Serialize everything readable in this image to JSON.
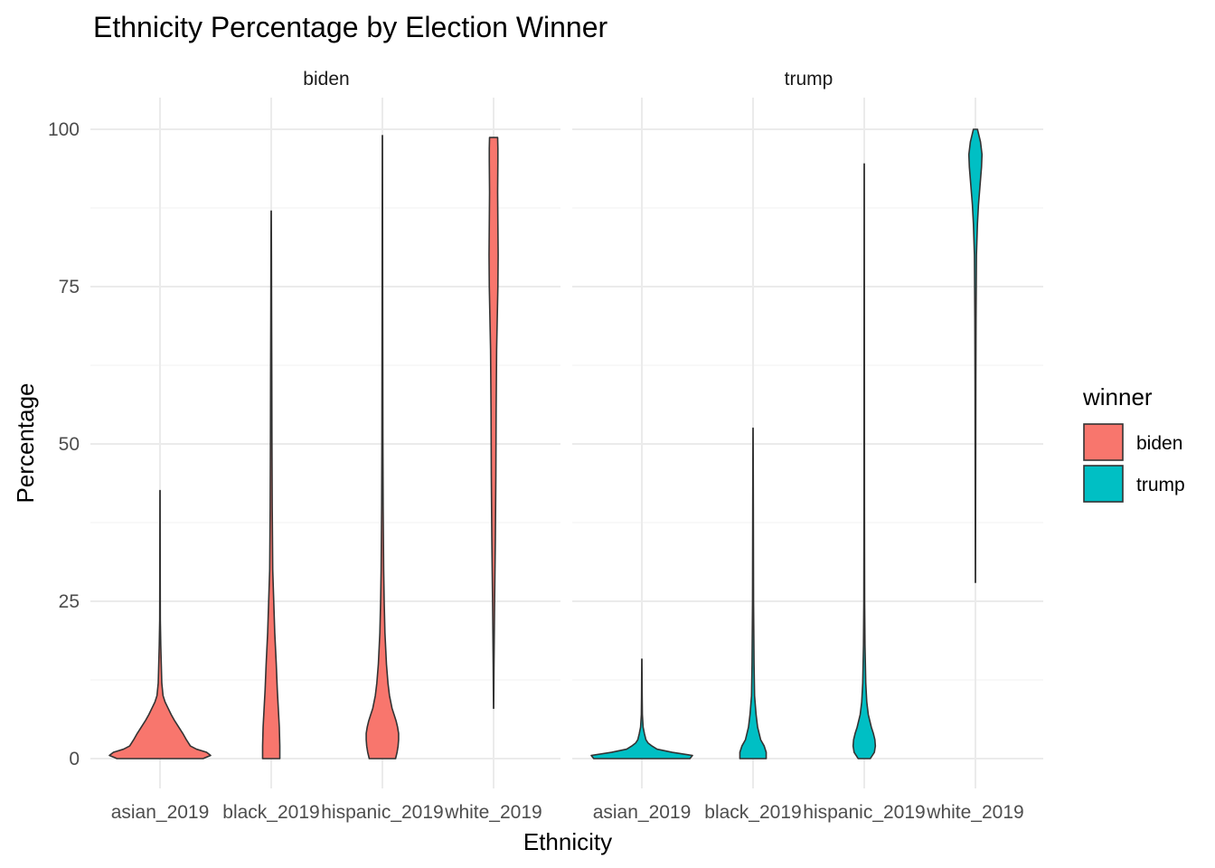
{
  "chart_data": {
    "type": "violin",
    "title": "Ethnicity Percentage by Election Winner",
    "xlabel": "Ethnicity",
    "ylabel": "Percentage",
    "ylim": [
      -4,
      105
    ],
    "y_ticks": [
      0,
      25,
      50,
      75,
      100
    ],
    "categories": [
      "asian_2019",
      "black_2019",
      "hispanic_2019",
      "white_2019"
    ],
    "legend": {
      "title": "winner",
      "position": "right",
      "entries": [
        {
          "label": "biden",
          "color": "#F8766D"
        },
        {
          "label": "trump",
          "color": "#00BFC4"
        }
      ]
    },
    "grid": true,
    "facets": [
      {
        "label": "biden",
        "color": "#F8766D",
        "violins": [
          {
            "category": "asian_2019",
            "min": 0,
            "max": 42.6,
            "profile": [
              [
                0,
                0.85
              ],
              [
                0.5,
                1.0
              ],
              [
                1,
                0.92
              ],
              [
                1.5,
                0.72
              ],
              [
                2,
                0.6
              ],
              [
                3,
                0.52
              ],
              [
                4,
                0.45
              ],
              [
                5,
                0.37
              ],
              [
                6,
                0.29
              ],
              [
                7,
                0.22
              ],
              [
                8,
                0.16
              ],
              [
                9,
                0.1
              ],
              [
                10,
                0.06
              ],
              [
                12,
                0.035
              ],
              [
                15,
                0.025
              ],
              [
                18,
                0.015
              ],
              [
                22,
                0.006
              ],
              [
                30,
                0.004
              ],
              [
                42.6,
                0.002
              ]
            ]
          },
          {
            "category": "black_2019",
            "min": 0,
            "max": 87,
            "profile": [
              [
                0,
                0.17
              ],
              [
                2,
                0.17
              ],
              [
                5,
                0.16
              ],
              [
                8,
                0.14
              ],
              [
                11,
                0.12
              ],
              [
                15,
                0.1
              ],
              [
                20,
                0.07
              ],
              [
                25,
                0.05
              ],
              [
                30,
                0.03
              ],
              [
                40,
                0.02
              ],
              [
                50,
                0.015
              ],
              [
                60,
                0.012
              ],
              [
                70,
                0.008
              ],
              [
                80,
                0.005
              ],
              [
                87,
                0.002
              ]
            ]
          },
          {
            "category": "hispanic_2019",
            "min": 0,
            "max": 99,
            "profile": [
              [
                0,
                0.26
              ],
              [
                1,
                0.29
              ],
              [
                2,
                0.31
              ],
              [
                3,
                0.32
              ],
              [
                4,
                0.32
              ],
              [
                5,
                0.3
              ],
              [
                6,
                0.27
              ],
              [
                7,
                0.23
              ],
              [
                8,
                0.19
              ],
              [
                10,
                0.14
              ],
              [
                12,
                0.11
              ],
              [
                15,
                0.08
              ],
              [
                20,
                0.05
              ],
              [
                25,
                0.035
              ],
              [
                30,
                0.025
              ],
              [
                40,
                0.015
              ],
              [
                50,
                0.01
              ],
              [
                70,
                0.006
              ],
              [
                85,
                0.004
              ],
              [
                99,
                0.002
              ]
            ]
          },
          {
            "category": "white_2019",
            "min": 8,
            "max": 98.7,
            "profile": [
              [
                8,
                0.002
              ],
              [
                15,
                0.008
              ],
              [
                25,
                0.02
              ],
              [
                35,
                0.035
              ],
              [
                45,
                0.045
              ],
              [
                55,
                0.05
              ],
              [
                65,
                0.06
              ],
              [
                75,
                0.085
              ],
              [
                80,
                0.09
              ],
              [
                85,
                0.085
              ],
              [
                90,
                0.08
              ],
              [
                95,
                0.085
              ],
              [
                97,
                0.085
              ],
              [
                98.7,
                0.08
              ]
            ]
          }
        ]
      },
      {
        "label": "trump",
        "color": "#00BFC4",
        "violins": [
          {
            "category": "asian_2019",
            "min": 0,
            "max": 15.8,
            "profile": [
              [
                0,
                0.95
              ],
              [
                0.5,
                1.0
              ],
              [
                1,
                0.6
              ],
              [
                1.5,
                0.3
              ],
              [
                2,
                0.2
              ],
              [
                2.5,
                0.12
              ],
              [
                3,
                0.08
              ],
              [
                4,
                0.05
              ],
              [
                5,
                0.025
              ],
              [
                7,
                0.01
              ],
              [
                10,
                0.006
              ],
              [
                15.8,
                0.002
              ]
            ]
          },
          {
            "category": "black_2019",
            "min": 0,
            "max": 52.5,
            "profile": [
              [
                0,
                0.26
              ],
              [
                1,
                0.26
              ],
              [
                2,
                0.22
              ],
              [
                3,
                0.15
              ],
              [
                5,
                0.09
              ],
              [
                7,
                0.06
              ],
              [
                10,
                0.03
              ],
              [
                15,
                0.02
              ],
              [
                25,
                0.01
              ],
              [
                40,
                0.006
              ],
              [
                52.5,
                0.002
              ]
            ]
          },
          {
            "category": "hispanic_2019",
            "min": 0,
            "max": 94.5,
            "profile": [
              [
                0,
                0.12
              ],
              [
                1,
                0.2
              ],
              [
                2,
                0.22
              ],
              [
                3,
                0.21
              ],
              [
                4,
                0.18
              ],
              [
                5,
                0.14
              ],
              [
                7,
                0.08
              ],
              [
                9,
                0.05
              ],
              [
                12,
                0.03
              ],
              [
                18,
                0.015
              ],
              [
                25,
                0.008
              ],
              [
                40,
                0.005
              ],
              [
                60,
                0.004
              ],
              [
                94.5,
                0.002
              ]
            ]
          },
          {
            "category": "white_2019",
            "min": 28,
            "max": 100,
            "profile": [
              [
                28,
                0.002
              ],
              [
                40,
                0.004
              ],
              [
                50,
                0.006
              ],
              [
                60,
                0.008
              ],
              [
                70,
                0.012
              ],
              [
                80,
                0.02
              ],
              [
                85,
                0.04
              ],
              [
                88,
                0.06
              ],
              [
                91,
                0.09
              ],
              [
                94,
                0.12
              ],
              [
                96,
                0.13
              ],
              [
                98,
                0.1
              ],
              [
                100,
                0.04
              ]
            ]
          }
        ]
      }
    ]
  }
}
